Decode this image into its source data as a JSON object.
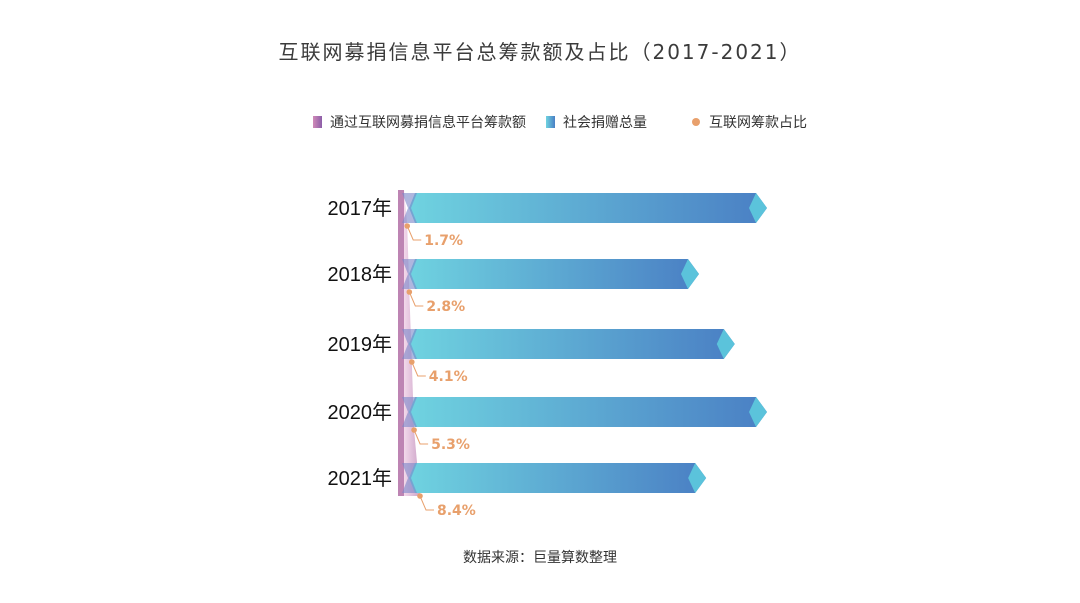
{
  "chart_data": {
    "type": "bar",
    "orientation": "horizontal",
    "title": "互联网募捐信息平台总筹款额及占比（2017-2021）",
    "categories": [
      "2017年",
      "2018年",
      "2019年",
      "2020年",
      "2021年"
    ],
    "series": [
      {
        "name": "通过互联网募捐信息平台筹款额",
        "values": [
          1.7,
          2.8,
          4.1,
          5.3,
          8.4
        ],
        "color": "#b26fa6"
      },
      {
        "name": "社会捐赠总量",
        "values": [
          100,
          81,
          91,
          100,
          83
        ],
        "color": "#4a90c8"
      },
      {
        "name": "互联网筹款占比",
        "values": [
          1.7,
          2.8,
          4.1,
          5.3,
          8.4
        ],
        "color": "#e8a06c"
      }
    ],
    "ratio_labels": [
      "1.7%",
      "2.8%",
      "4.1%",
      "5.3%",
      "8.4%"
    ],
    "legend_position": "top",
    "grid": false,
    "source": "数据来源：巨量算数整理"
  },
  "colors": {
    "bar_light": "#6fd3e0",
    "bar_dark": "#4a7fc4",
    "tip": "#5cc6dc",
    "ratio": "#e8a06c",
    "axis_light": "#e2c4dc",
    "axis_dark": "#b26fa6"
  }
}
